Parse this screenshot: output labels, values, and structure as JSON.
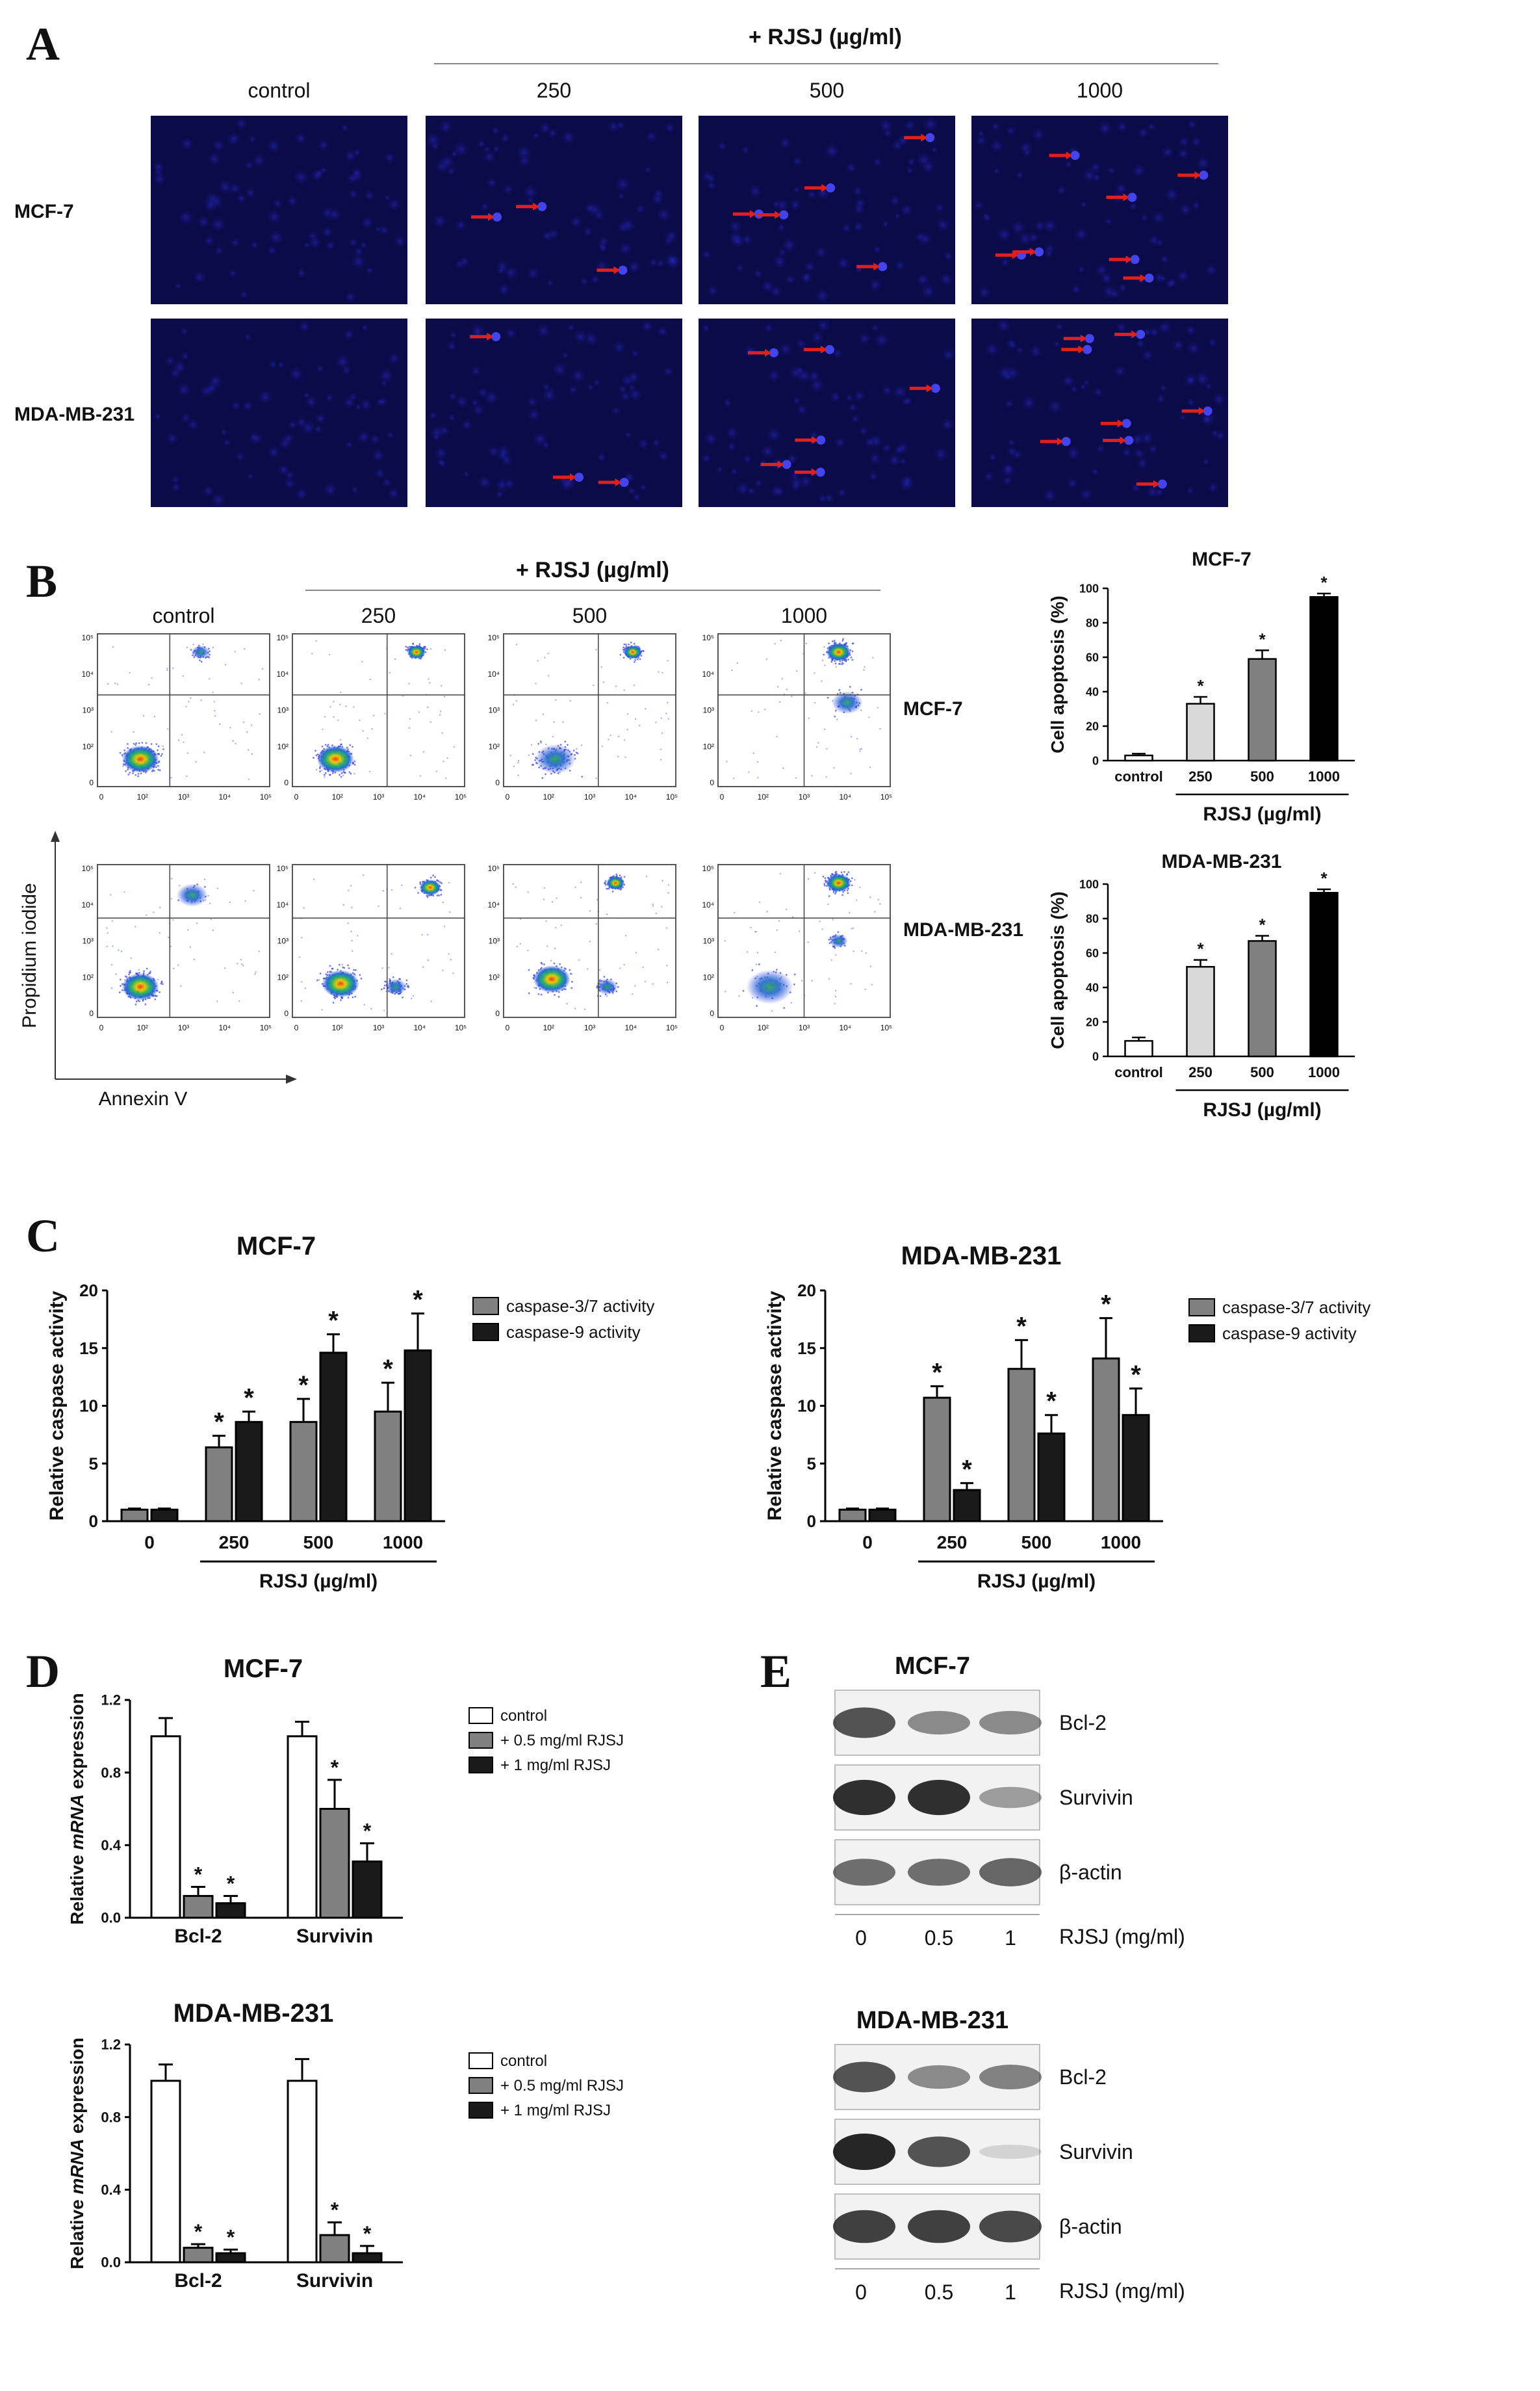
{
  "panels": {
    "A": {
      "letter": "A",
      "treatment_header": "+ RJSJ (µg/ml)",
      "columns": [
        "control",
        "250",
        "500",
        "1000"
      ],
      "rows": [
        "MCF-7",
        "MDA-MB-231"
      ],
      "arrow_color": "#e0201e",
      "stain_color": "#0b0b4a"
    },
    "B": {
      "letter": "B",
      "treatment_header": "+ RJSJ (µg/ml)",
      "columns": [
        "control",
        "250",
        "500",
        "1000"
      ],
      "rows": [
        "MCF-7",
        "MDA-MB-231"
      ],
      "y_axis_label": "Propidium iodide",
      "x_axis_label": "Annexin V",
      "flow_x_ticks": [
        "0",
        "10²",
        "10³",
        "10⁴",
        "10⁵"
      ],
      "flow_y_ticks": [
        "0",
        "10²",
        "10³",
        "10⁴",
        "10⁵"
      ]
    },
    "C": {
      "letter": "C"
    },
    "D": {
      "letter": "D"
    },
    "E": {
      "letter": "E",
      "blots": [
        {
          "title": "MCF-7",
          "bands": [
            "Bcl-2",
            "Survivin",
            "β-actin"
          ],
          "lanes": [
            "0",
            "0.5",
            "1"
          ],
          "lane_axis_label": "RJSJ (mg/ml)",
          "band_intensity": [
            [
              0.75,
              0.45,
              0.45
            ],
            [
              0.95,
              0.95,
              0.35
            ],
            [
              0.6,
              0.6,
              0.65
            ]
          ]
        },
        {
          "title": "MDA-MB-231",
          "bands": [
            "Bcl-2",
            "Survivin",
            "β-actin"
          ],
          "lanes": [
            "0",
            "0.5",
            "1"
          ],
          "lane_axis_label": "RJSJ (mg/ml)",
          "band_intensity": [
            [
              0.75,
              0.45,
              0.5
            ],
            [
              1.0,
              0.75,
              0.05
            ],
            [
              0.85,
              0.85,
              0.8
            ]
          ]
        }
      ]
    }
  },
  "chart_data": [
    {
      "id": "b-mcf7",
      "type": "bar",
      "title": "MCF-7",
      "ylabel": "Cell apoptosis (%)",
      "xlabel": "RJSJ (µg/ml)",
      "categories": [
        "control",
        "250",
        "500",
        "1000"
      ],
      "values": [
        3,
        33,
        59,
        95
      ],
      "errors": [
        1,
        4,
        5,
        2
      ],
      "significance": [
        "",
        "*",
        "*",
        "*"
      ],
      "bar_colors": [
        "#ffffff",
        "#d9d9d9",
        "#808080",
        "#000000"
      ],
      "ylim": [
        0,
        100
      ],
      "yticks": [
        0,
        20,
        40,
        60,
        80,
        100
      ]
    },
    {
      "id": "b-mda",
      "type": "bar",
      "title": "MDA-MB-231",
      "ylabel": "Cell apoptosis (%)",
      "xlabel": "RJSJ (µg/ml)",
      "categories": [
        "control",
        "250",
        "500",
        "1000"
      ],
      "values": [
        9,
        52,
        67,
        95
      ],
      "errors": [
        2,
        4,
        3,
        2
      ],
      "significance": [
        "",
        "*",
        "*",
        "*"
      ],
      "bar_colors": [
        "#ffffff",
        "#d9d9d9",
        "#808080",
        "#000000"
      ],
      "ylim": [
        0,
        100
      ],
      "yticks": [
        0,
        20,
        40,
        60,
        80,
        100
      ]
    },
    {
      "id": "c-mcf7",
      "type": "bar",
      "title": "MCF-7",
      "ylabel": "Relative caspase activity",
      "xlabel": "RJSJ (µg/ml)",
      "categories": [
        "0",
        "250",
        "500",
        "1000"
      ],
      "series": [
        {
          "name": "caspase-3/7 activity",
          "color": "#808080",
          "values": [
            1,
            6.4,
            8.6,
            9.5
          ],
          "errors": [
            0.1,
            1.0,
            2.0,
            2.5
          ],
          "significance": [
            "",
            "*",
            "*",
            "*"
          ]
        },
        {
          "name": "caspase-9 activity",
          "color": "#1a1a1a",
          "values": [
            1,
            8.6,
            14.6,
            14.8
          ],
          "errors": [
            0.1,
            0.9,
            1.6,
            3.2
          ],
          "significance": [
            "",
            "*",
            "*",
            "*"
          ]
        }
      ],
      "ylim": [
        0,
        20
      ],
      "yticks": [
        0,
        5,
        10,
        15,
        20
      ]
    },
    {
      "id": "c-mda",
      "type": "bar",
      "title": "MDA-MB-231",
      "ylabel": "Relative caspase activity",
      "xlabel": "RJSJ (µg/ml)",
      "categories": [
        "0",
        "250",
        "500",
        "1000"
      ],
      "series": [
        {
          "name": "caspase-3/7 activity",
          "color": "#808080",
          "values": [
            1,
            10.7,
            13.2,
            14.1
          ],
          "errors": [
            0.1,
            1.0,
            2.5,
            3.5
          ],
          "significance": [
            "",
            "*",
            "*",
            "*"
          ]
        },
        {
          "name": "caspase-9 activity",
          "color": "#1a1a1a",
          "values": [
            1,
            2.7,
            7.6,
            9.2
          ],
          "errors": [
            0.1,
            0.6,
            1.6,
            2.3
          ],
          "significance": [
            "",
            "*",
            "*",
            "*"
          ]
        }
      ],
      "ylim": [
        0,
        20
      ],
      "yticks": [
        0,
        5,
        10,
        15,
        20
      ]
    },
    {
      "id": "d-mcf7",
      "type": "bar",
      "title": "MCF-7",
      "ylabel": "Relative mRNA expression",
      "ylabel_italic_word": "mRNA",
      "categories": [
        "Bcl-2",
        "Survivin"
      ],
      "series": [
        {
          "name": "control",
          "color": "#ffffff",
          "values": [
            1.0,
            1.0
          ],
          "errors": [
            0.1,
            0.08
          ],
          "significance": [
            "",
            ""
          ]
        },
        {
          "name": "+ 0.5 mg/ml RJSJ",
          "color": "#808080",
          "values": [
            0.12,
            0.6
          ],
          "errors": [
            0.05,
            0.16
          ],
          "significance": [
            "*",
            "*"
          ]
        },
        {
          "name": "+ 1 mg/ml RJSJ",
          "color": "#1a1a1a",
          "values": [
            0.08,
            0.31
          ],
          "errors": [
            0.04,
            0.1
          ],
          "significance": [
            "*",
            "*"
          ]
        }
      ],
      "ylim": [
        0,
        1.2
      ],
      "yticks": [
        0.0,
        0.4,
        0.8,
        1.2
      ]
    },
    {
      "id": "d-mda",
      "type": "bar",
      "title": "MDA-MB-231",
      "ylabel": "Relative mRNA expression",
      "ylabel_italic_word": "mRNA",
      "categories": [
        "Bcl-2",
        "Survivin"
      ],
      "series": [
        {
          "name": "control",
          "color": "#ffffff",
          "values": [
            1.0,
            1.0
          ],
          "errors": [
            0.09,
            0.12
          ],
          "significance": [
            "",
            ""
          ]
        },
        {
          "name": "+ 0.5 mg/ml RJSJ",
          "color": "#808080",
          "values": [
            0.08,
            0.15
          ],
          "errors": [
            0.02,
            0.07
          ],
          "significance": [
            "*",
            "*"
          ]
        },
        {
          "name": "+ 1 mg/ml RJSJ",
          "color": "#1a1a1a",
          "values": [
            0.05,
            0.05
          ],
          "errors": [
            0.02,
            0.04
          ],
          "significance": [
            "*",
            "*"
          ]
        }
      ],
      "ylim": [
        0,
        1.2
      ],
      "yticks": [
        0.0,
        0.4,
        0.8,
        1.2
      ]
    }
  ]
}
